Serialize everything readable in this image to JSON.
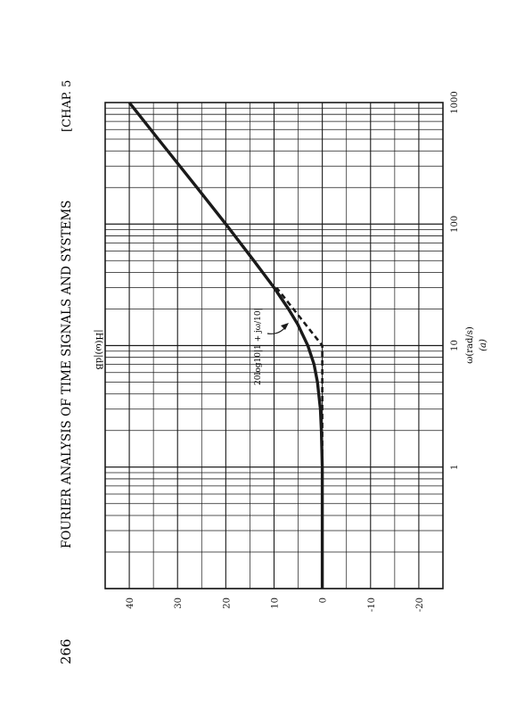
{
  "page": {
    "page_number": "266",
    "running_title": "FOURIER ANALYSIS OF TIME SIGNALS AND SYSTEMS",
    "chapter": "[CHAP. 5"
  },
  "chart_data": {
    "type": "line",
    "title": "",
    "xlabel": "ω(rad/s)",
    "subfigure_label": "(a)",
    "ylabel": "|H(ω)|dB",
    "xscale": "log",
    "xlim": [
      0.1,
      1000
    ],
    "ylim": [
      -25,
      45
    ],
    "x_ticks": [
      "1",
      "10",
      "100",
      "1000"
    ],
    "y_ticks": [
      "40",
      "30",
      "20",
      "10",
      "0",
      "-10",
      "-20"
    ],
    "grid": true,
    "annotation": "20log10|1 + jω/10|",
    "series": [
      {
        "style": "solid",
        "x": [
          0.1,
          0.5,
          1,
          2,
          3,
          5,
          7,
          10,
          15,
          20,
          30,
          50,
          100,
          200,
          500,
          1000
        ],
        "y": [
          0,
          0,
          0,
          0.2,
          0.4,
          1.0,
          1.7,
          3.0,
          5.1,
          7.0,
          10.0,
          14.2,
          20.0,
          26.0,
          34.0,
          40.0
        ]
      },
      {
        "style": "dashed",
        "x": [
          0.1,
          10,
          20,
          30
        ],
        "y": [
          0,
          0,
          6.0,
          9.5
        ]
      }
    ]
  }
}
